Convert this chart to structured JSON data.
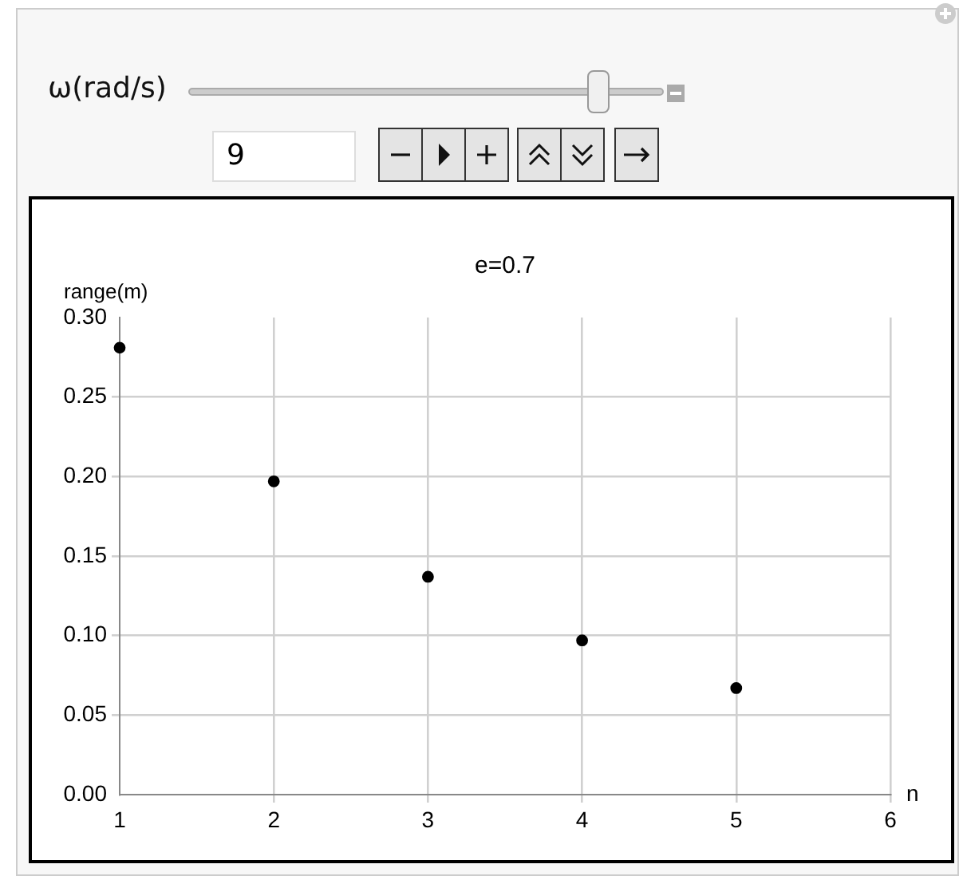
{
  "chart_data": {
    "type": "scatter",
    "title": "e=0.7",
    "xlabel": "n",
    "ylabel": "range(m)",
    "x": [
      1,
      2,
      3,
      4,
      5
    ],
    "series": [
      {
        "color": "#000000",
        "values": [
          0.281,
          0.197,
          0.137,
          0.097,
          0.067
        ]
      }
    ],
    "xlim": [
      1,
      6
    ],
    "xticks": [
      1,
      2,
      3,
      4,
      5,
      6
    ],
    "ylim": [
      0,
      0.3
    ],
    "yticks": [
      {
        "value": 0,
        "label": "0.00"
      },
      {
        "value": 0.05,
        "label": "0.05"
      },
      {
        "value": 0.1,
        "label": "0.10"
      },
      {
        "value": 0.15,
        "label": "0.15"
      },
      {
        "value": 0.2,
        "label": "0.20"
      },
      {
        "value": 0.25,
        "label": "0.25"
      },
      {
        "value": 0.3,
        "label": "0.30"
      }
    ],
    "grid": true,
    "marker": "circle",
    "annotations": [
      "ω(rad/s)",
      "9"
    ]
  }
}
